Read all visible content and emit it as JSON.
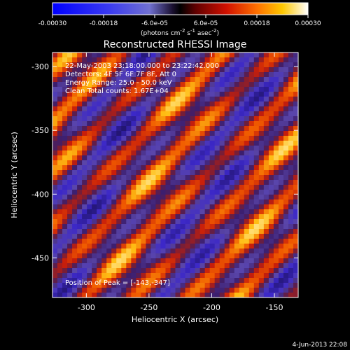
{
  "chart_data": {
    "type": "heatmap",
    "title": "Reconstructed RHESSI Image",
    "xlabel": "Heliocentric X (arcsec)",
    "ylabel": "Heliocentric Y (arcsec)",
    "xlim": [
      -327,
      -131
    ],
    "ylim": [
      -481,
      -289
    ],
    "x_ticks": [
      "-300",
      "-250",
      "-200",
      "-150"
    ],
    "x_tick_values": [
      -300,
      -250,
      -200,
      -150
    ],
    "y_ticks": [
      "-300",
      "-350",
      "-400",
      "-450"
    ],
    "y_tick_values": [
      -300,
      -350,
      -400,
      -450
    ],
    "colorbar": {
      "ticks": [
        "-0.00030",
        "-0.00018",
        "-6.0e-05",
        "6.0e-05",
        "0.00018",
        "0.00030"
      ],
      "tick_values": [
        -0.0003,
        -0.00018,
        -6e-05,
        6e-05,
        0.00018,
        0.0003
      ],
      "range": [
        -0.0003,
        0.0003
      ],
      "colormap": "blue-white-black-red-yellow-white",
      "unit_prefix": "(photons cm",
      "unit_exp1": "-2",
      "unit_mid": " s",
      "unit_exp2": "-1",
      "unit_mid2": " asec",
      "unit_exp3": "-2",
      "unit_suffix": ")"
    },
    "annotations": [
      "22-May-2003 23:18:00.000 to 23:22:42.000",
      "Detectors: 4F 5F 6F 7F 8F, Att 0",
      "Energy Range: 25.0 - 50.0 keV",
      "Clean    Total counts: 1.67E+04"
    ],
    "peak_label": "Position of Peak = [-143,-347]",
    "peak": [
      -143,
      -347
    ]
  },
  "footer": {
    "date": "4-Jun-2013 22:08"
  },
  "colors": {
    "background": "#000000",
    "text": "#ffffff",
    "heat_low": "#3b1fa8",
    "heat_high": "#ffe060"
  }
}
